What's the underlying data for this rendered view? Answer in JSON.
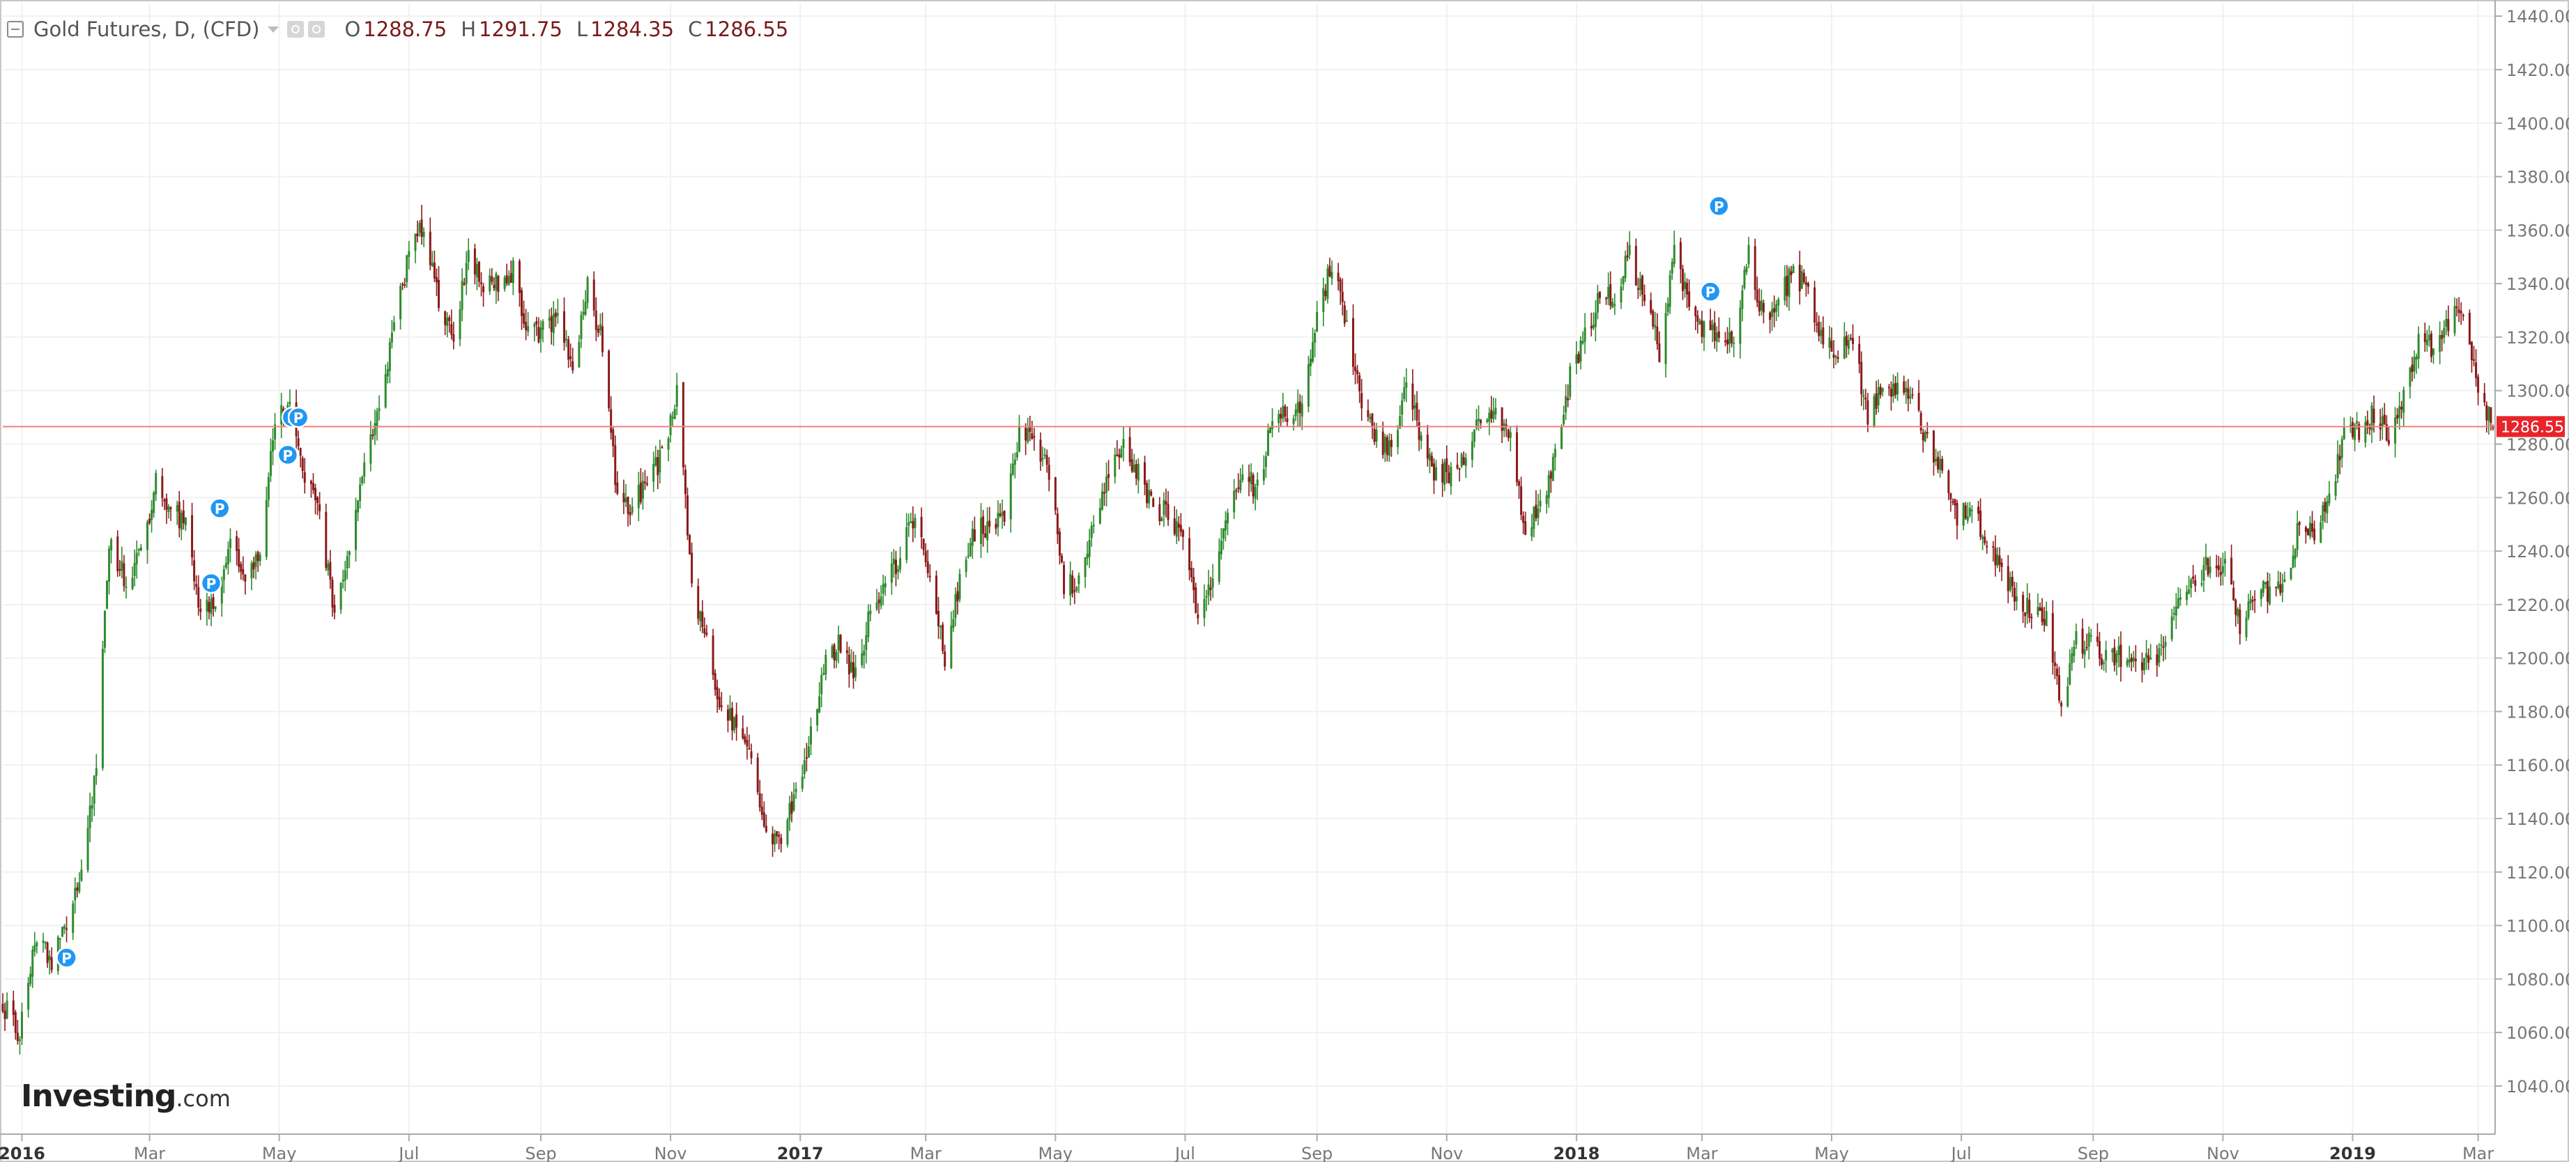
{
  "legend": {
    "symbol": "Gold Futures, D, (CFD)",
    "open_label": "O",
    "open": "1288.75",
    "high_label": "H",
    "high": "1291.75",
    "low_label": "L",
    "low": "1284.35",
    "close_label": "C",
    "close": "1286.55"
  },
  "logo": {
    "main": "Investing",
    "suffix": ".com"
  },
  "colors": {
    "up": "#2e8b2e",
    "down": "#8b1a1a",
    "price_line": "#f08080",
    "price_tag": "#e8242a",
    "marker": "#2196f3",
    "grid": "#f1f1f1",
    "axis": "#777777"
  },
  "chart_data": {
    "type": "candlestick",
    "title": "Gold Futures, D, (CFD)",
    "x_range": [
      "2015-12-23",
      "2019-03-09"
    ],
    "ylim": [
      1025,
      1445
    ],
    "grid": true,
    "last_price": 1286.55,
    "last_price_label": "1286.55",
    "y_ticks": [
      "1040.00",
      "1060.00",
      "1080.00",
      "1100.00",
      "1120.00",
      "1140.00",
      "1160.00",
      "1180.00",
      "1200.00",
      "1220.00",
      "1240.00",
      "1260.00",
      "1280.00",
      "1300.00",
      "1320.00",
      "1340.00",
      "1360.00",
      "1380.00",
      "1400.00",
      "1420.00",
      "1440.00"
    ],
    "x_ticks": [
      {
        "label": "2016",
        "date": "2016-01-01",
        "bold": true
      },
      {
        "label": "Mar",
        "date": "2016-03-01",
        "bold": false
      },
      {
        "label": "May",
        "date": "2016-05-01",
        "bold": false
      },
      {
        "label": "Jul",
        "date": "2016-07-01",
        "bold": false
      },
      {
        "label": "Sep",
        "date": "2016-09-01",
        "bold": false
      },
      {
        "label": "Nov",
        "date": "2016-11-01",
        "bold": false
      },
      {
        "label": "2017",
        "date": "2017-01-01",
        "bold": true
      },
      {
        "label": "Mar",
        "date": "2017-03-01",
        "bold": false
      },
      {
        "label": "May",
        "date": "2017-05-01",
        "bold": false
      },
      {
        "label": "Jul",
        "date": "2017-07-01",
        "bold": false
      },
      {
        "label": "Sep",
        "date": "2017-09-01",
        "bold": false
      },
      {
        "label": "Nov",
        "date": "2017-11-01",
        "bold": false
      },
      {
        "label": "2018",
        "date": "2018-01-01",
        "bold": true
      },
      {
        "label": "Mar",
        "date": "2018-03-01",
        "bold": false
      },
      {
        "label": "May",
        "date": "2018-05-01",
        "bold": false
      },
      {
        "label": "Jul",
        "date": "2018-07-01",
        "bold": false
      },
      {
        "label": "Sep",
        "date": "2018-09-01",
        "bold": false
      },
      {
        "label": "Nov",
        "date": "2018-11-01",
        "bold": false
      },
      {
        "label": "2019",
        "date": "2019-01-01",
        "bold": true
      },
      {
        "label": "Mar",
        "date": "2019-03-01",
        "bold": false
      }
    ],
    "price_path": [
      [
        "2015-12-23",
        1070
      ],
      [
        "2015-12-31",
        1060
      ],
      [
        "2016-01-08",
        1097
      ],
      [
        "2016-01-15",
        1085
      ],
      [
        "2016-01-22",
        1100
      ],
      [
        "2016-01-29",
        1118
      ],
      [
        "2016-02-05",
        1160
      ],
      [
        "2016-02-11",
        1245
      ],
      [
        "2016-02-19",
        1228
      ],
      [
        "2016-02-26",
        1240
      ],
      [
        "2016-03-04",
        1265
      ],
      [
        "2016-03-11",
        1255
      ],
      [
        "2016-03-18",
        1250
      ],
      [
        "2016-03-25",
        1218
      ],
      [
        "2016-04-01",
        1222
      ],
      [
        "2016-04-08",
        1242
      ],
      [
        "2016-04-15",
        1232
      ],
      [
        "2016-04-22",
        1240
      ],
      [
        "2016-04-29",
        1290
      ],
      [
        "2016-05-06",
        1292
      ],
      [
        "2016-05-13",
        1270
      ],
      [
        "2016-05-20",
        1252
      ],
      [
        "2016-05-27",
        1215
      ],
      [
        "2016-06-03",
        1240
      ],
      [
        "2016-06-10",
        1272
      ],
      [
        "2016-06-17",
        1295
      ],
      [
        "2016-06-24",
        1322
      ],
      [
        "2016-07-01",
        1352
      ],
      [
        "2016-07-08",
        1362
      ],
      [
        "2016-07-15",
        1332
      ],
      [
        "2016-07-22",
        1322
      ],
      [
        "2016-07-29",
        1350
      ],
      [
        "2016-08-05",
        1338
      ],
      [
        "2016-08-12",
        1340
      ],
      [
        "2016-08-19",
        1345
      ],
      [
        "2016-08-26",
        1322
      ],
      [
        "2016-09-02",
        1322
      ],
      [
        "2016-09-09",
        1328
      ],
      [
        "2016-09-16",
        1310
      ],
      [
        "2016-09-23",
        1338
      ],
      [
        "2016-09-30",
        1318
      ],
      [
        "2016-10-07",
        1258
      ],
      [
        "2016-10-14",
        1256
      ],
      [
        "2016-10-21",
        1266
      ],
      [
        "2016-10-28",
        1275
      ],
      [
        "2016-11-04",
        1300
      ],
      [
        "2016-11-11",
        1225
      ],
      [
        "2016-11-18",
        1208
      ],
      [
        "2016-11-25",
        1180
      ],
      [
        "2016-12-02",
        1176
      ],
      [
        "2016-12-09",
        1162
      ],
      [
        "2016-12-16",
        1135
      ],
      [
        "2016-12-23",
        1133
      ],
      [
        "2016-12-30",
        1150
      ],
      [
        "2017-01-06",
        1172
      ],
      [
        "2017-01-13",
        1198
      ],
      [
        "2017-01-20",
        1206
      ],
      [
        "2017-01-27",
        1192
      ],
      [
        "2017-02-03",
        1218
      ],
      [
        "2017-02-10",
        1228
      ],
      [
        "2017-02-17",
        1238
      ],
      [
        "2017-02-24",
        1255
      ],
      [
        "2017-03-03",
        1232
      ],
      [
        "2017-03-10",
        1200
      ],
      [
        "2017-03-17",
        1230
      ],
      [
        "2017-03-24",
        1248
      ],
      [
        "2017-03-31",
        1250
      ],
      [
        "2017-04-07",
        1255
      ],
      [
        "2017-04-14",
        1285
      ],
      [
        "2017-04-21",
        1284
      ],
      [
        "2017-04-28",
        1268
      ],
      [
        "2017-05-05",
        1228
      ],
      [
        "2017-05-12",
        1228
      ],
      [
        "2017-05-19",
        1253
      ],
      [
        "2017-05-26",
        1268
      ],
      [
        "2017-06-02",
        1278
      ],
      [
        "2017-06-09",
        1270
      ],
      [
        "2017-06-16",
        1255
      ],
      [
        "2017-06-23",
        1255
      ],
      [
        "2017-06-30",
        1242
      ],
      [
        "2017-07-07",
        1214
      ],
      [
        "2017-07-14",
        1228
      ],
      [
        "2017-07-21",
        1255
      ],
      [
        "2017-07-28",
        1268
      ],
      [
        "2017-08-04",
        1263
      ],
      [
        "2017-08-11",
        1290
      ],
      [
        "2017-08-18",
        1292
      ],
      [
        "2017-08-25",
        1292
      ],
      [
        "2017-09-01",
        1325
      ],
      [
        "2017-09-08",
        1348
      ],
      [
        "2017-09-15",
        1322
      ],
      [
        "2017-09-22",
        1296
      ],
      [
        "2017-09-29",
        1283
      ],
      [
        "2017-10-06",
        1276
      ],
      [
        "2017-10-13",
        1302
      ],
      [
        "2017-10-20",
        1282
      ],
      [
        "2017-10-27",
        1268
      ],
      [
        "2017-11-03",
        1270
      ],
      [
        "2017-11-10",
        1275
      ],
      [
        "2017-11-17",
        1292
      ],
      [
        "2017-11-24",
        1290
      ],
      [
        "2017-12-01",
        1280
      ],
      [
        "2017-12-08",
        1248
      ],
      [
        "2017-12-15",
        1256
      ],
      [
        "2017-12-22",
        1276
      ],
      [
        "2017-12-29",
        1305
      ],
      [
        "2018-01-05",
        1320
      ],
      [
        "2018-01-12",
        1335
      ],
      [
        "2018-01-19",
        1336
      ],
      [
        "2018-01-26",
        1350
      ],
      [
        "2018-02-02",
        1335
      ],
      [
        "2018-02-09",
        1315
      ],
      [
        "2018-02-16",
        1352
      ],
      [
        "2018-02-23",
        1330
      ],
      [
        "2018-03-02",
        1322
      ],
      [
        "2018-03-09",
        1322
      ],
      [
        "2018-03-16",
        1318
      ],
      [
        "2018-03-23",
        1350
      ],
      [
        "2018-03-30",
        1327
      ],
      [
        "2018-04-06",
        1333
      ],
      [
        "2018-04-13",
        1345
      ],
      [
        "2018-04-20",
        1337
      ],
      [
        "2018-04-27",
        1320
      ],
      [
        "2018-05-04",
        1315
      ],
      [
        "2018-05-11",
        1320
      ],
      [
        "2018-05-18",
        1290
      ],
      [
        "2018-05-25",
        1303
      ],
      [
        "2018-06-01",
        1300
      ],
      [
        "2018-06-08",
        1300
      ],
      [
        "2018-06-15",
        1280
      ],
      [
        "2018-06-22",
        1270
      ],
      [
        "2018-06-29",
        1253
      ],
      [
        "2018-07-06",
        1256
      ],
      [
        "2018-07-13",
        1242
      ],
      [
        "2018-07-20",
        1232
      ],
      [
        "2018-07-27",
        1224
      ],
      [
        "2018-08-03",
        1216
      ],
      [
        "2018-08-10",
        1216
      ],
      [
        "2018-08-17",
        1184
      ],
      [
        "2018-08-24",
        1206
      ],
      [
        "2018-08-31",
        1206
      ],
      [
        "2018-09-07",
        1200
      ],
      [
        "2018-09-14",
        1201
      ],
      [
        "2018-09-21",
        1201
      ],
      [
        "2018-09-28",
        1196
      ],
      [
        "2018-10-05",
        1207
      ],
      [
        "2018-10-12",
        1222
      ],
      [
        "2018-10-19",
        1228
      ],
      [
        "2018-10-26",
        1236
      ],
      [
        "2018-11-02",
        1235
      ],
      [
        "2018-11-09",
        1212
      ],
      [
        "2018-11-16",
        1225
      ],
      [
        "2018-11-23",
        1225
      ],
      [
        "2018-11-30",
        1226
      ],
      [
        "2018-12-07",
        1252
      ],
      [
        "2018-12-14",
        1245
      ],
      [
        "2018-12-21",
        1260
      ],
      [
        "2018-12-28",
        1284
      ],
      [
        "2019-01-04",
        1285
      ],
      [
        "2019-01-11",
        1292
      ],
      [
        "2019-01-18",
        1282
      ],
      [
        "2019-01-25",
        1298
      ],
      [
        "2019-02-01",
        1320
      ],
      [
        "2019-02-08",
        1316
      ],
      [
        "2019-02-15",
        1326
      ],
      [
        "2019-02-22",
        1330
      ],
      [
        "2019-03-01",
        1300
      ],
      [
        "2019-03-08",
        1287
      ]
    ],
    "markers": [
      {
        "label": "P",
        "date": "2016-01-22",
        "price": 1088
      },
      {
        "label": "P",
        "date": "2016-04-03",
        "price": 1256
      },
      {
        "label": "P",
        "date": "2016-03-30",
        "price": 1228
      },
      {
        "label": "P",
        "date": "2016-05-05",
        "price": 1276
      },
      {
        "label": "P",
        "date": "2016-05-07",
        "price": 1290
      },
      {
        "label": "P",
        "date": "2016-05-10",
        "price": 1290
      },
      {
        "label": "P",
        "date": "2018-03-05",
        "price": 1337
      },
      {
        "label": "P",
        "date": "2018-03-09",
        "price": 1369
      }
    ]
  }
}
